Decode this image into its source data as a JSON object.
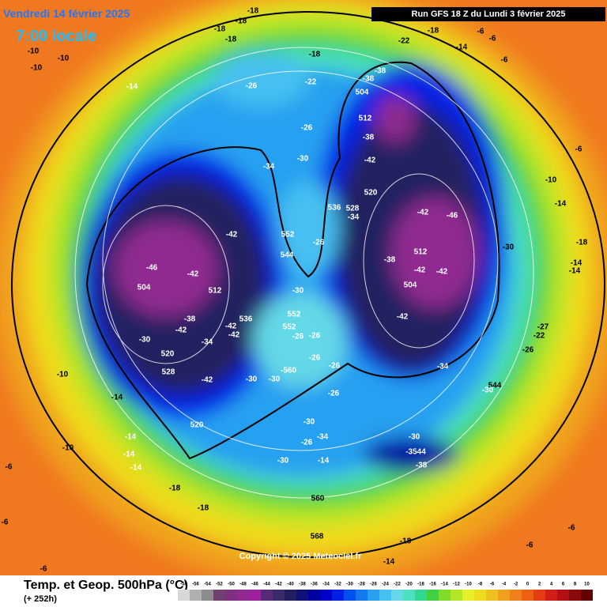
{
  "header": {
    "date": "Vendredi 14 février 2025",
    "time": "7:00 locale",
    "run": "Run GFS 18 Z du Lundi 3 février 2025"
  },
  "copyright": "Copyright © 2025 Meteociel.fr",
  "legend": {
    "title": "Temp. et Geop. 500hPa (°C)",
    "lead": "(+ 252h)",
    "values": [
      -58,
      -56,
      -54,
      -52,
      -50,
      -48,
      -46,
      -44,
      -42,
      -40,
      -38,
      -36,
      -34,
      -32,
      -30,
      -28,
      -26,
      -24,
      -22,
      -20,
      -18,
      -16,
      -14,
      -12,
      -10,
      -8,
      -6,
      -4,
      -2,
      0,
      2,
      4,
      6,
      8,
      10
    ],
    "colors": [
      "#d8d8d8",
      "#b0b0b0",
      "#8c8c8c",
      "#704070",
      "#803080",
      "#902a90",
      "#a020a0",
      "#5a2a7a",
      "#3a2a6a",
      "#202060",
      "#10107a",
      "#0000a0",
      "#0000c8",
      "#0020e6",
      "#0050f0",
      "#1478f0",
      "#28a0f0",
      "#46c0f0",
      "#64d8e6",
      "#4ce0c0",
      "#30d890",
      "#40d040",
      "#80dc28",
      "#b4e628",
      "#e6f028",
      "#f0dc1e",
      "#f0c01e",
      "#f0a01e",
      "#f08019",
      "#f06014",
      "#e63c14",
      "#d21e14",
      "#b40f14",
      "#8c0a0a",
      "#640000"
    ]
  },
  "map_labels": [
    "-18",
    "-18",
    "-18",
    "-18",
    "-10",
    "-10",
    "-10",
    "-14",
    "-18",
    "-22",
    "-26",
    "-26",
    "-34",
    "-30",
    "-38",
    "-38",
    "504",
    "512",
    "-38",
    "-42",
    "520",
    "528",
    "536",
    "-34",
    "-42",
    "-46",
    "552",
    "-26",
    "544",
    "-42",
    "-46",
    "504",
    "-42",
    "512",
    "-38",
    "-42",
    "-42",
    "-42",
    "536",
    "-34",
    "-30",
    "520",
    "528",
    "-42",
    "-30",
    "552",
    "552",
    "-26",
    "-26",
    "-26",
    "-26",
    "-560",
    "-30",
    "-30",
    "-26",
    "520",
    "-30",
    "-34",
    "-26",
    "-14",
    "-30",
    "-30",
    "-3544",
    "-38",
    "512",
    "-42",
    "-42",
    "-38",
    "504",
    "-42",
    "-34",
    "-30",
    "544",
    "-30",
    "-26",
    "-27",
    "-22",
    "-18",
    "-14",
    "-14",
    "-10",
    "-6",
    "-6",
    "-6",
    "-6",
    "-14",
    "-18",
    "-22",
    "-18",
    "-14",
    "568",
    "560",
    "-18",
    "-18",
    "-14",
    "-14",
    "-14",
    "-14",
    "-10",
    "-10",
    "-6",
    "-6",
    "-6",
    "-6",
    "-6",
    "-14"
  ]
}
